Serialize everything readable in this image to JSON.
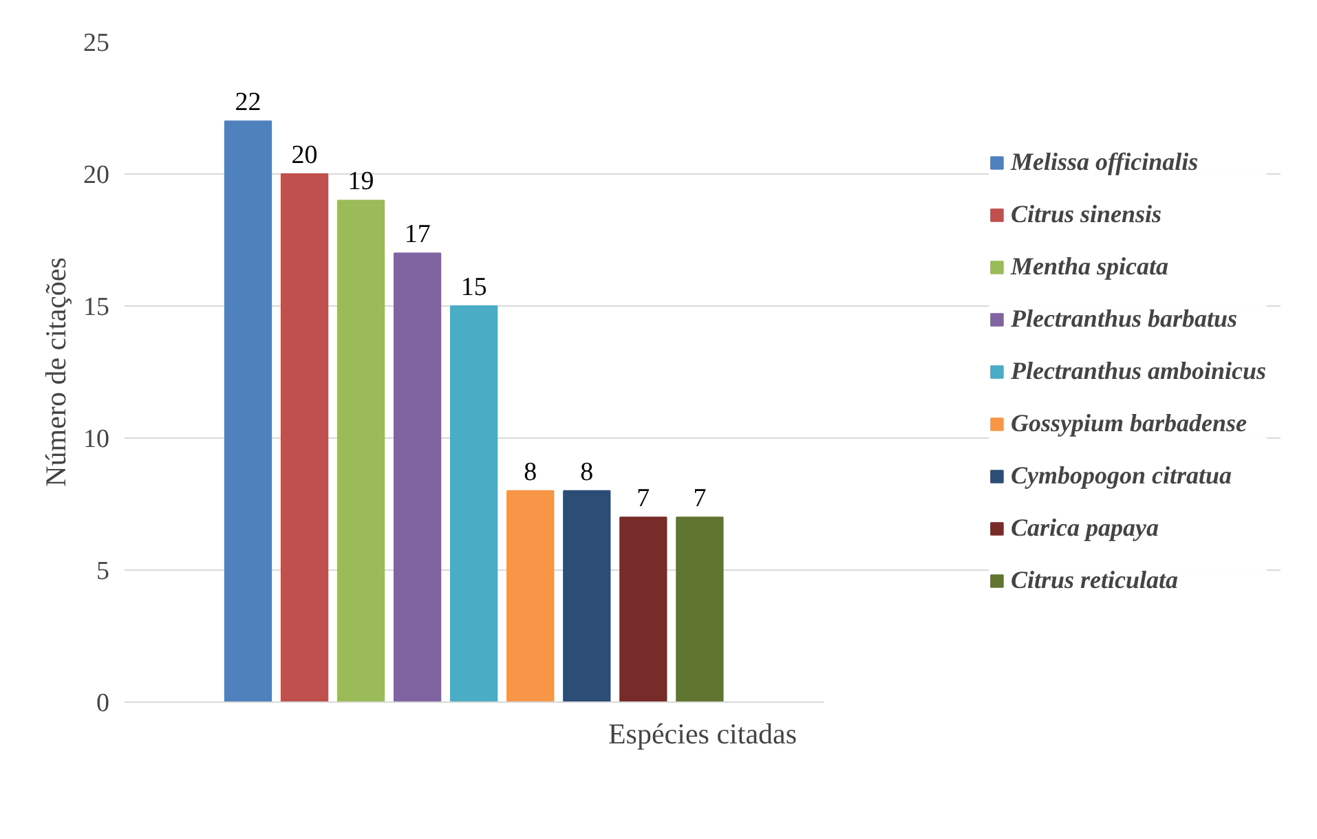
{
  "chart_data": {
    "type": "bar",
    "xlabel": "Espécies citadas",
    "ylabel": "Número de citações",
    "categories": [
      null
    ],
    "series": [
      {
        "name": "Melissa officinalis",
        "color": "#4f81bd",
        "values": [
          22
        ]
      },
      {
        "name": "Citrus sinensis",
        "color": "#c0504d",
        "values": [
          20
        ]
      },
      {
        "name": "Mentha spicata",
        "color": "#9bbb59",
        "values": [
          19
        ]
      },
      {
        "name": "Plectranthus barbatus",
        "color": "#8064a2",
        "values": [
          17
        ]
      },
      {
        "name": "Plectranthus amboinicus",
        "color": "#4bacc6",
        "values": [
          15
        ]
      },
      {
        "name": "Gossypium barbadense",
        "color": "#f79646",
        "values": [
          8
        ]
      },
      {
        "name": "Cymbopogon citratua",
        "color": "#2c4d75",
        "values": [
          8
        ]
      },
      {
        "name": "Carica papaya",
        "color": "#772c2a",
        "values": [
          7
        ]
      },
      {
        "name": "Citrus reticulata",
        "color": "#5f7530",
        "values": [
          7
        ]
      }
    ],
    "ylim": [
      0,
      25
    ],
    "yticks": [
      0,
      5,
      10,
      15,
      20,
      25
    ],
    "grid": "y",
    "legend": "right",
    "data_labels": true
  }
}
